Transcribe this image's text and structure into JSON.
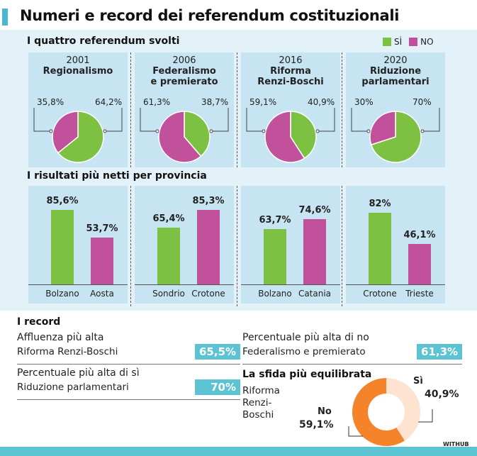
{
  "title": "Numeri e record dei referendum costituzionali",
  "colors": {
    "si": "#7dc142",
    "no": "#c2519b",
    "accent": "#5bc3d1",
    "donut_no": "#f5832a",
    "donut_si": "#fde3d0"
  },
  "legend": {
    "si": "SÌ",
    "no": "NO"
  },
  "section1": "I quattro referendum svolti",
  "section2": "I risultati più netti per provincia",
  "chart_data": [
    {
      "type": "pie",
      "title": "I quattro referendum svolti",
      "series_names": [
        "SÌ",
        "NO"
      ],
      "pies": [
        {
          "year": "2001",
          "name": "Regionalismo",
          "no": 35.8,
          "si": 64.2,
          "no_label": "35,8%",
          "si_label": "64,2%"
        },
        {
          "year": "2006",
          "name": "Federalismo e premierato",
          "no": 61.3,
          "si": 38.7,
          "no_label": "61,3%",
          "si_label": "38,7%"
        },
        {
          "year": "2016",
          "name": "Riforma Renzi-Boschi",
          "no": 59.1,
          "si": 40.9,
          "no_label": "59,1%",
          "si_label": "40,9%"
        },
        {
          "year": "2020",
          "name": "Riduzione parlamentari",
          "no": 30,
          "si": 70,
          "no_label": "30%",
          "si_label": "70%"
        }
      ]
    },
    {
      "type": "bar",
      "title": "I risultati più netti per provincia",
      "groups": [
        {
          "bars": [
            {
              "province": "Bolzano",
              "value": 85.6,
              "label": "85,6%",
              "side": "si"
            },
            {
              "province": "Aosta",
              "value": 53.7,
              "label": "53,7%",
              "side": "no"
            }
          ]
        },
        {
          "bars": [
            {
              "province": "Sondrio",
              "value": 65.4,
              "label": "65,4%",
              "side": "si"
            },
            {
              "province": "Crotone",
              "value": 85.3,
              "label": "85,3%",
              "side": "no"
            }
          ]
        },
        {
          "bars": [
            {
              "province": "Bolzano",
              "value": 63.7,
              "label": "63,7%",
              "side": "si"
            },
            {
              "province": "Catania",
              "value": 74.6,
              "label": "74,6%",
              "side": "no"
            }
          ]
        },
        {
          "bars": [
            {
              "province": "Crotone",
              "value": 82,
              "label": "82%",
              "side": "si"
            },
            {
              "province": "Trieste",
              "value": 46.1,
              "label": "46,1%",
              "side": "no"
            }
          ]
        }
      ]
    },
    {
      "type": "pie",
      "title": "La sfida più equilibrata",
      "subtitle": "Riforma Renzi-Boschi",
      "donut": true,
      "si": 40.9,
      "no": 59.1,
      "si_name": "Sì",
      "no_name": "No",
      "si_label": "40,9%",
      "no_label": "59,1%"
    }
  ],
  "records": {
    "heading": "I record",
    "items": [
      {
        "title": "Affluenza più alta",
        "subject": "Riforma Renzi-Boschi",
        "value": "65,5%"
      },
      {
        "title": "Percentuale più alta di sì",
        "subject": "Riduzione parlamentari",
        "value": "70%"
      },
      {
        "title": "Percentuale più alta di no",
        "subject": "Federalismo e premierato",
        "value": "61,3%"
      }
    ]
  },
  "credit": "WITHUB"
}
